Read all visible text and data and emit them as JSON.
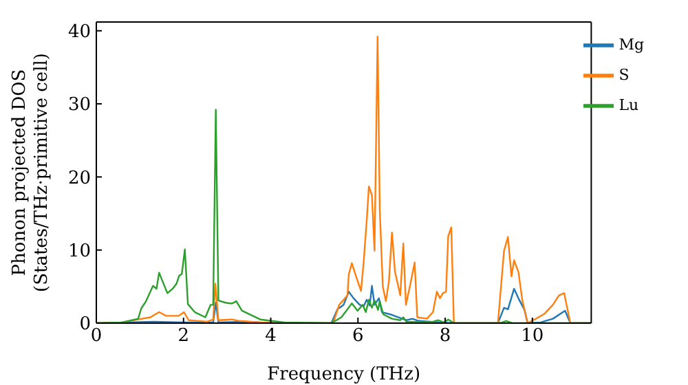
{
  "chart_data": {
    "type": "line",
    "xlabel": "Frequency (THz)",
    "ylabel": "Phonon projected DOS\n(States/THz·primitive cell)",
    "xlim": [
      0,
      11.35
    ],
    "ylim": [
      0,
      41.2
    ],
    "xticks": [
      0,
      2,
      4,
      6,
      8,
      10
    ],
    "yticks": [
      0,
      10,
      20,
      30,
      40
    ],
    "legend": "top right",
    "marker": "none",
    "line_style": "solid",
    "series": [
      {
        "name": "Mg",
        "color": "#1f77b4",
        "x": [
          0,
          1.33,
          1.99,
          2.68,
          2.74,
          2.8,
          3.38,
          4.13,
          5.39,
          5.53,
          5.67,
          5.79,
          5.9,
          6.04,
          6.13,
          6.2,
          6.27,
          6.32,
          6.38,
          6.48,
          6.55,
          6.74,
          6.92,
          7.11,
          7.25,
          7.39,
          7.86,
          8.2,
          9.21,
          9.35,
          9.44,
          9.58,
          9.68,
          9.82,
          9.89,
          10.19,
          10.47,
          10.7,
          10.75,
          10.87,
          11.35
        ],
        "values": [
          0,
          0.2,
          0.1,
          0.1,
          2.8,
          0.1,
          0.2,
          0,
          0,
          1.9,
          2.5,
          4.3,
          3.4,
          2.5,
          2.3,
          3.2,
          2.4,
          5.1,
          2.5,
          3.4,
          1.5,
          1.2,
          0.8,
          0.4,
          0.6,
          0.3,
          0.1,
          0,
          0,
          2.1,
          1.9,
          4.7,
          3.4,
          1.8,
          0,
          0.1,
          0.6,
          1.5,
          1.7,
          0,
          0
        ]
      },
      {
        "name": "S",
        "color": "#ff7f0e",
        "x": [
          0,
          0.59,
          0.96,
          1.24,
          1.35,
          1.44,
          1.6,
          1.89,
          2.01,
          2.12,
          2.54,
          2.68,
          2.73,
          2.8,
          3.1,
          3.29,
          3.76,
          4.13,
          5.43,
          5.57,
          5.76,
          5.79,
          5.86,
          5.95,
          6.07,
          6.13,
          6.21,
          6.25,
          6.32,
          6.38,
          6.45,
          6.5,
          6.57,
          6.64,
          6.71,
          6.78,
          6.85,
          6.97,
          7.04,
          7.1,
          7.19,
          7.3,
          7.36,
          7.58,
          7.72,
          7.81,
          7.88,
          7.95,
          8.02,
          8.07,
          8.14,
          8.2,
          9.21,
          9.35,
          9.44,
          9.52,
          9.58,
          9.68,
          9.77,
          9.89,
          10.05,
          10.28,
          10.47,
          10.61,
          10.73,
          10.87,
          11.35
        ],
        "values": [
          0,
          0.1,
          0.5,
          0.8,
          1.2,
          1.5,
          1,
          1,
          1.5,
          0.4,
          0.2,
          0.5,
          5.4,
          0.4,
          0.5,
          0.3,
          0.1,
          0,
          0,
          2.5,
          3.8,
          6.7,
          8.2,
          6.5,
          4.4,
          8.3,
          14.8,
          18.7,
          17.5,
          9.9,
          39.2,
          15.5,
          5,
          3,
          5.7,
          12.4,
          7,
          3.8,
          10.9,
          2.5,
          5,
          8.3,
          0.8,
          0.6,
          1.5,
          4.3,
          3.4,
          4.1,
          4.3,
          11.9,
          13.1,
          0,
          0,
          9.9,
          11.8,
          6.4,
          8.6,
          7,
          3.1,
          0,
          0.5,
          1.3,
          2.5,
          3.8,
          4.1,
          0,
          0
        ]
      },
      {
        "name": "Lu",
        "color": "#2ca02c",
        "x": [
          0,
          0.59,
          0.96,
          1.03,
          1.14,
          1.3,
          1.38,
          1.44,
          1.52,
          1.63,
          1.75,
          1.84,
          1.9,
          1.96,
          2.03,
          2.1,
          2.26,
          2.5,
          2.62,
          2.68,
          2.74,
          2.8,
          2.96,
          3.06,
          3.12,
          3.21,
          3.34,
          3.76,
          4.31,
          5.39,
          5.62,
          5.86,
          5.99,
          6.11,
          6.18,
          6.25,
          6.32,
          6.38,
          6.46,
          6.5,
          6.58,
          6.78,
          6.97,
          7.04,
          7.11,
          7.67,
          7.84,
          7.97,
          8.07,
          8.2,
          9.26,
          9.4,
          9.54,
          11.35
        ],
        "values": [
          0,
          0.1,
          0.6,
          2,
          3,
          5.1,
          4.7,
          6.9,
          5.7,
          4.1,
          4.7,
          5.4,
          6.5,
          6.7,
          10.1,
          2.6,
          1.5,
          0.8,
          2.5,
          2.5,
          29.2,
          3.1,
          2.8,
          2.7,
          2.7,
          3,
          1.7,
          0.5,
          0.1,
          0,
          0.8,
          2.7,
          1.7,
          2.5,
          1.5,
          3.2,
          2.1,
          3.1,
          1.8,
          3,
          1.2,
          0.6,
          0.4,
          0.8,
          0.2,
          0.1,
          0.4,
          0.1,
          0.5,
          0,
          0,
          0.3,
          0,
          0
        ]
      }
    ]
  }
}
